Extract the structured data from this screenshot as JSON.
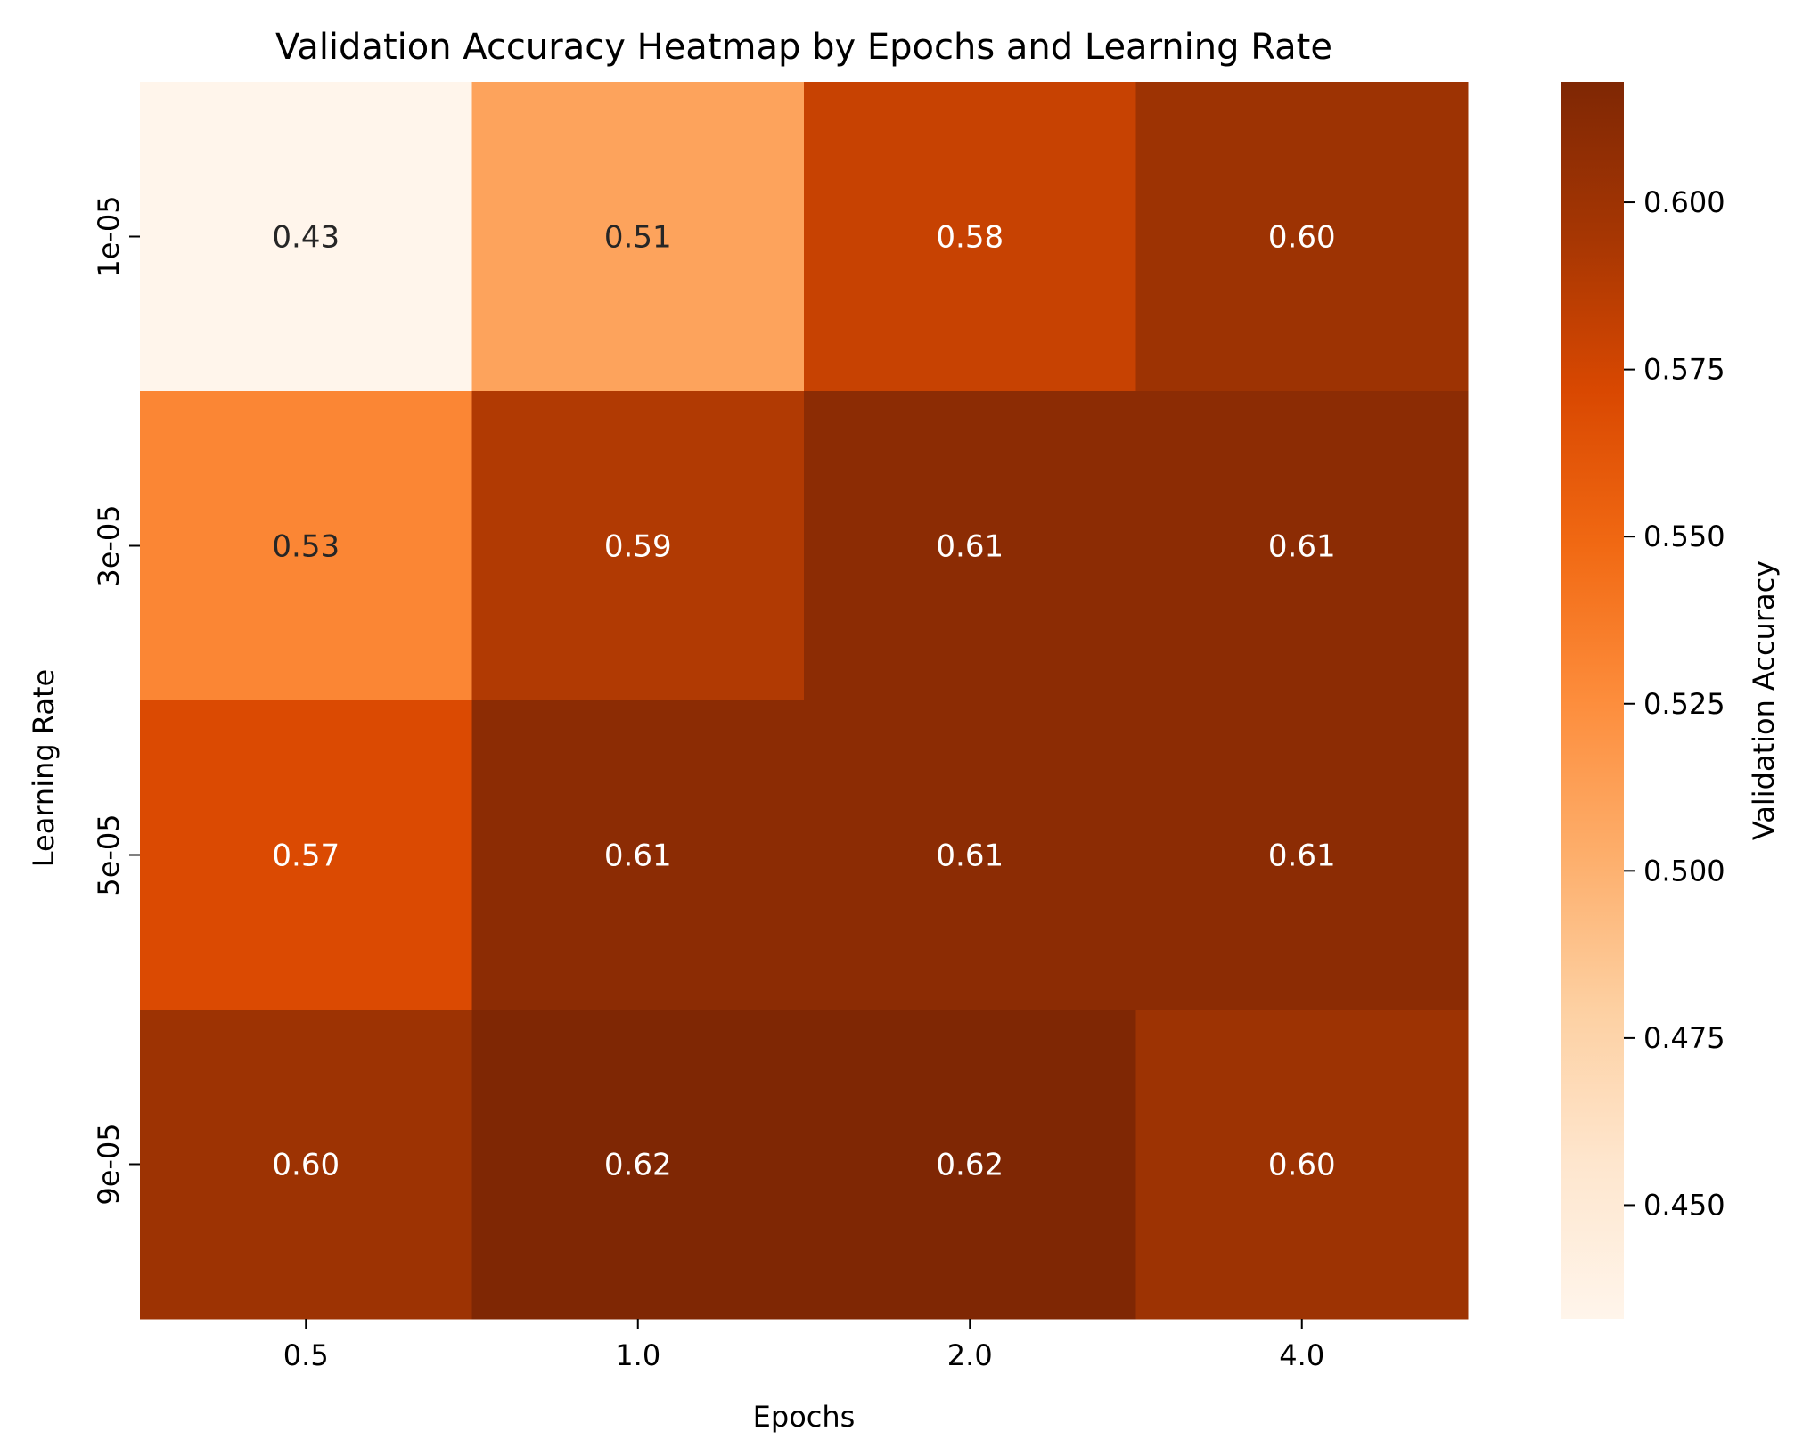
{
  "chart_data": {
    "type": "heatmap",
    "title": "Validation Accuracy Heatmap by Epochs and Learning Rate",
    "xlabel": "Epochs",
    "ylabel": "Learning Rate",
    "x_categories": [
      "0.5",
      "1.0",
      "2.0",
      "4.0"
    ],
    "y_categories": [
      "1e-05",
      "3e-05",
      "5e-05",
      "9e-05"
    ],
    "values": [
      [
        0.43,
        0.51,
        0.58,
        0.6
      ],
      [
        0.53,
        0.59,
        0.61,
        0.61
      ],
      [
        0.57,
        0.61,
        0.61,
        0.61
      ],
      [
        0.6,
        0.62,
        0.62,
        0.6
      ]
    ],
    "value_labels": [
      [
        "0.43",
        "0.51",
        "0.58",
        "0.60"
      ],
      [
        "0.53",
        "0.59",
        "0.61",
        "0.61"
      ],
      [
        "0.57",
        "0.61",
        "0.61",
        "0.61"
      ],
      [
        "0.60",
        "0.62",
        "0.62",
        "0.60"
      ]
    ],
    "colorbar": {
      "label": "Validation Accuracy",
      "range": [
        0.433,
        0.618
      ],
      "ticks": [
        0.45,
        0.475,
        0.5,
        0.525,
        0.55,
        0.575,
        0.6
      ],
      "tick_labels": [
        "0.450",
        "0.475",
        "0.500",
        "0.525",
        "0.550",
        "0.575",
        "0.600"
      ],
      "colormap": "Oranges",
      "colors": [
        "#fff5eb",
        "#fee6ce",
        "#fdd0a2",
        "#fdae6b",
        "#fd8d3c",
        "#f16913",
        "#d94801",
        "#a63603",
        "#7f2704"
      ]
    },
    "grid": false
  }
}
